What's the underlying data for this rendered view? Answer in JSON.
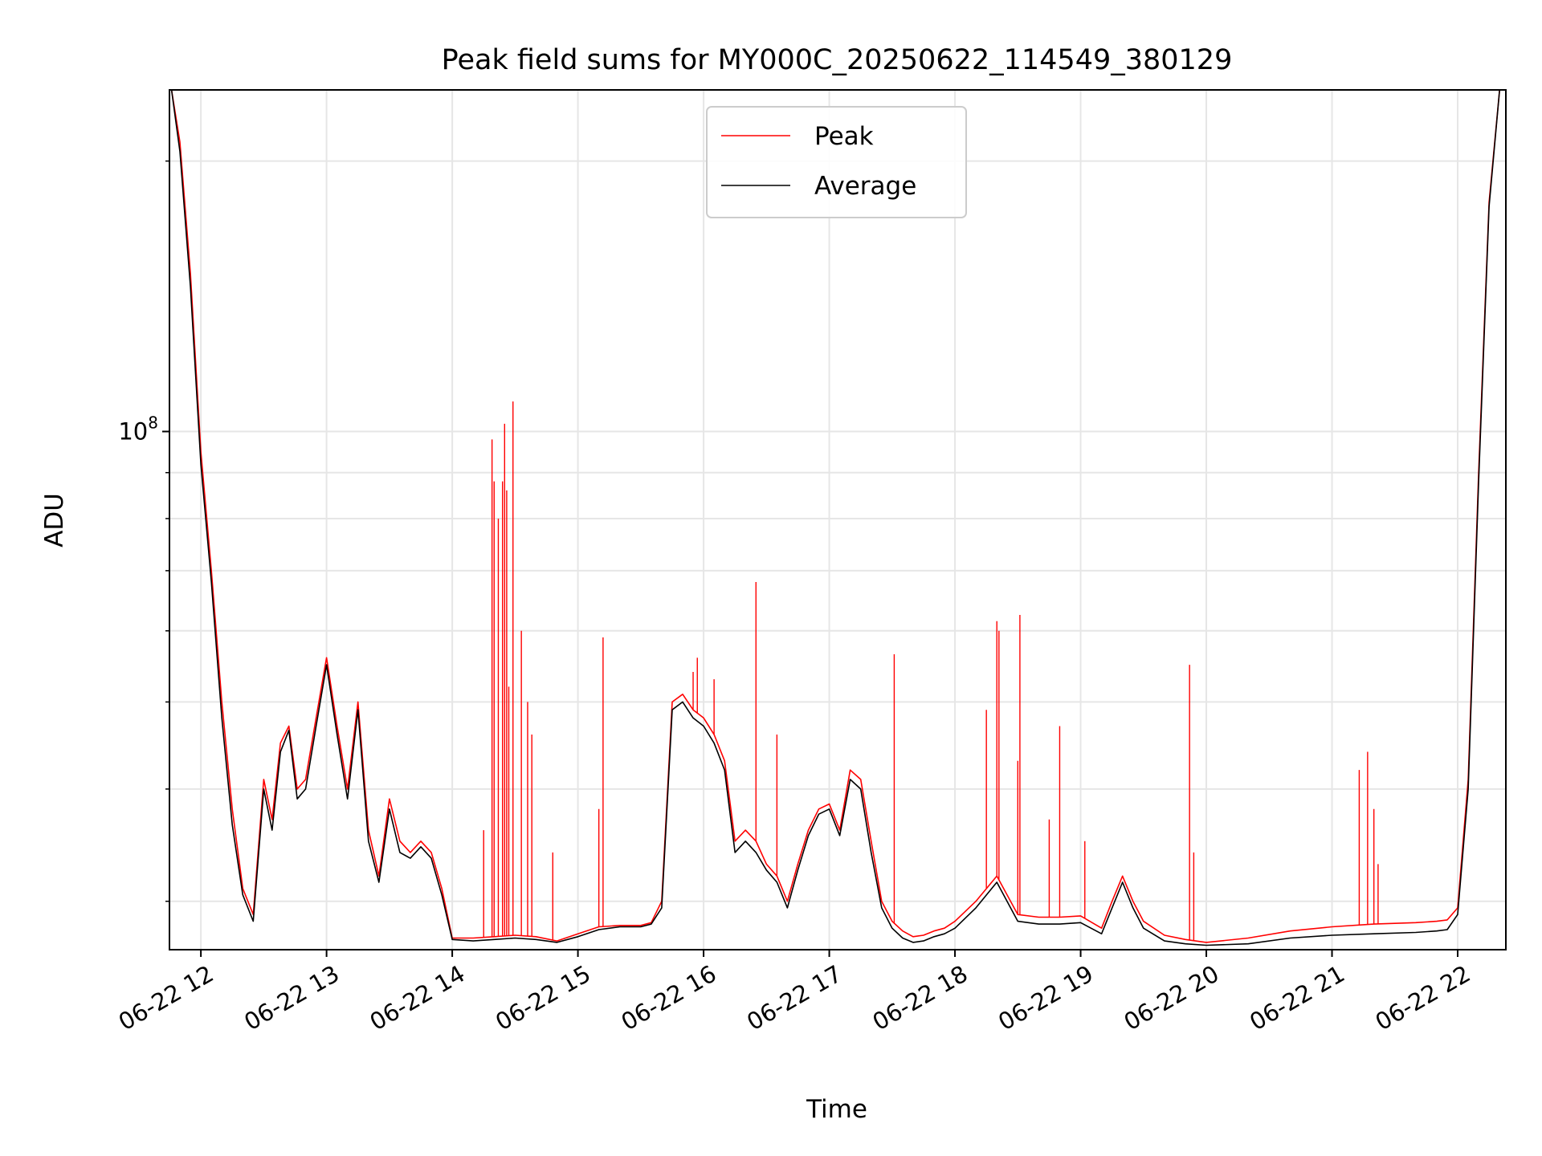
{
  "chart_data": {
    "type": "line",
    "title": "Peak field sums for MY000C_20250622_114549_380129",
    "xlabel": "Time",
    "ylabel": "ADU",
    "yscale": "log",
    "grid": true,
    "legend_position": "top-center",
    "xlim": [
      "2025-06-22 11:45",
      "2025-06-22 22:23"
    ],
    "ylim": [
      26500000,
      240000000
    ],
    "x_ticks": [
      "06-22 12",
      "06-22 13",
      "06-22 14",
      "06-22 15",
      "06-22 16",
      "06-22 17",
      "06-22 18",
      "06-22 19",
      "06-22 20",
      "06-22 21",
      "06-22 22"
    ],
    "y_ticks": [
      {
        "value": 100000000,
        "base": "10",
        "exp": "8"
      }
    ],
    "series": [
      {
        "name": "Peak",
        "color": "#ff0000",
        "x": [
          "2025-06-22 11:46",
          "2025-06-22 11:50",
          "2025-06-22 11:55",
          "2025-06-22 12:00",
          "2025-06-22 12:05",
          "2025-06-22 12:10",
          "2025-06-22 12:15",
          "2025-06-22 12:20",
          "2025-06-22 12:25",
          "2025-06-22 12:30",
          "2025-06-22 12:34",
          "2025-06-22 12:38",
          "2025-06-22 12:42",
          "2025-06-22 12:46",
          "2025-06-22 12:50",
          "2025-06-22 12:55",
          "2025-06-22 13:00",
          "2025-06-22 13:05",
          "2025-06-22 13:10",
          "2025-06-22 13:15",
          "2025-06-22 13:20",
          "2025-06-22 13:25",
          "2025-06-22 13:30",
          "2025-06-22 13:35",
          "2025-06-22 13:40",
          "2025-06-22 13:45",
          "2025-06-22 13:50",
          "2025-06-22 13:55",
          "2025-06-22 14:00",
          "2025-06-22 14:10",
          "2025-06-22 14:20",
          "2025-06-22 14:30",
          "2025-06-22 14:40",
          "2025-06-22 14:50",
          "2025-06-22 15:00",
          "2025-06-22 15:10",
          "2025-06-22 15:20",
          "2025-06-22 15:30",
          "2025-06-22 15:35",
          "2025-06-22 15:40",
          "2025-06-22 15:45",
          "2025-06-22 15:50",
          "2025-06-22 15:55",
          "2025-06-22 16:00",
          "2025-06-22 16:05",
          "2025-06-22 16:10",
          "2025-06-22 16:15",
          "2025-06-22 16:20",
          "2025-06-22 16:25",
          "2025-06-22 16:30",
          "2025-06-22 16:35",
          "2025-06-22 16:40",
          "2025-06-22 16:45",
          "2025-06-22 16:50",
          "2025-06-22 16:55",
          "2025-06-22 17:00",
          "2025-06-22 17:05",
          "2025-06-22 17:10",
          "2025-06-22 17:15",
          "2025-06-22 17:20",
          "2025-06-22 17:25",
          "2025-06-22 17:30",
          "2025-06-22 17:35",
          "2025-06-22 17:40",
          "2025-06-22 17:45",
          "2025-06-22 17:50",
          "2025-06-22 17:55",
          "2025-06-22 18:00",
          "2025-06-22 18:10",
          "2025-06-22 18:20",
          "2025-06-22 18:30",
          "2025-06-22 18:40",
          "2025-06-22 18:50",
          "2025-06-22 19:00",
          "2025-06-22 19:10",
          "2025-06-22 19:15",
          "2025-06-22 19:20",
          "2025-06-22 19:25",
          "2025-06-22 19:30",
          "2025-06-22 19:40",
          "2025-06-22 19:50",
          "2025-06-22 20:00",
          "2025-06-22 20:20",
          "2025-06-22 20:40",
          "2025-06-22 21:00",
          "2025-06-22 21:20",
          "2025-06-22 21:40",
          "2025-06-22 21:50",
          "2025-06-22 21:55",
          "2025-06-22 22:00",
          "2025-06-22 22:05",
          "2025-06-22 22:10",
          "2025-06-22 22:15",
          "2025-06-22 22:20"
        ],
        "y": [
          240000000,
          210000000,
          150000000,
          95000000,
          70000000,
          50000000,
          38000000,
          31000000,
          29000000,
          41000000,
          37000000,
          45000000,
          47000000,
          40000000,
          41000000,
          48000000,
          56000000,
          47000000,
          40000000,
          50000000,
          36000000,
          32000000,
          39000000,
          35000000,
          34000000,
          35000000,
          34000000,
          31000000,
          27300000,
          27300000,
          27400000,
          27500000,
          27400000,
          27100000,
          27600000,
          28100000,
          28200000,
          28200000,
          28400000,
          30000000,
          50000000,
          51000000,
          49000000,
          48000000,
          46000000,
          43000000,
          35000000,
          36000000,
          35000000,
          33000000,
          32000000,
          30000000,
          33000000,
          36000000,
          38000000,
          38500000,
          36000000,
          42000000,
          41000000,
          35000000,
          30000000,
          28500000,
          27800000,
          27400000,
          27500000,
          27800000,
          28000000,
          28500000,
          30000000,
          32000000,
          29000000,
          28800000,
          28800000,
          28900000,
          28000000,
          30000000,
          32000000,
          30000000,
          28500000,
          27500000,
          27200000,
          27000000,
          27300000,
          27800000,
          28100000,
          28300000,
          28400000,
          28500000,
          28600000,
          29500000,
          41000000,
          90000000,
          180000000,
          240000000
        ],
        "spikes": [
          {
            "x": "2025-06-22 14:15",
            "y": 36000000
          },
          {
            "x": "2025-06-22 14:19",
            "y": 98000000
          },
          {
            "x": "2025-06-22 14:20",
            "y": 88000000
          },
          {
            "x": "2025-06-22 14:22",
            "y": 80000000
          },
          {
            "x": "2025-06-22 14:24",
            "y": 88000000
          },
          {
            "x": "2025-06-22 14:25",
            "y": 102000000
          },
          {
            "x": "2025-06-22 14:26",
            "y": 86000000
          },
          {
            "x": "2025-06-22 14:27",
            "y": 52000000
          },
          {
            "x": "2025-06-22 14:29",
            "y": 108000000
          },
          {
            "x": "2025-06-22 14:33",
            "y": 60000000
          },
          {
            "x": "2025-06-22 14:36",
            "y": 50000000
          },
          {
            "x": "2025-06-22 14:38",
            "y": 46000000
          },
          {
            "x": "2025-06-22 14:48",
            "y": 34000000
          },
          {
            "x": "2025-06-22 15:10",
            "y": 38000000
          },
          {
            "x": "2025-06-22 15:12",
            "y": 59000000
          },
          {
            "x": "2025-06-22 15:55",
            "y": 54000000
          },
          {
            "x": "2025-06-22 15:57",
            "y": 56000000
          },
          {
            "x": "2025-06-22 16:05",
            "y": 53000000
          },
          {
            "x": "2025-06-22 16:25",
            "y": 68000000
          },
          {
            "x": "2025-06-22 16:35",
            "y": 46000000
          },
          {
            "x": "2025-06-22 17:31",
            "y": 56500000
          },
          {
            "x": "2025-06-22 18:15",
            "y": 49000000
          },
          {
            "x": "2025-06-22 18:20",
            "y": 61500000
          },
          {
            "x": "2025-06-22 18:21",
            "y": 60000000
          },
          {
            "x": "2025-06-22 18:30",
            "y": 43000000
          },
          {
            "x": "2025-06-22 18:31",
            "y": 62500000
          },
          {
            "x": "2025-06-22 18:45",
            "y": 37000000
          },
          {
            "x": "2025-06-22 18:50",
            "y": 47000000
          },
          {
            "x": "2025-06-22 19:02",
            "y": 35000000
          },
          {
            "x": "2025-06-22 19:52",
            "y": 55000000
          },
          {
            "x": "2025-06-22 19:54",
            "y": 34000000
          },
          {
            "x": "2025-06-22 21:13",
            "y": 42000000
          },
          {
            "x": "2025-06-22 21:17",
            "y": 44000000
          },
          {
            "x": "2025-06-22 21:20",
            "y": 38000000
          },
          {
            "x": "2025-06-22 21:22",
            "y": 33000000
          }
        ]
      },
      {
        "name": "Average",
        "color": "#000000",
        "x": [
          "2025-06-22 11:46",
          "2025-06-22 11:50",
          "2025-06-22 11:55",
          "2025-06-22 12:00",
          "2025-06-22 12:05",
          "2025-06-22 12:10",
          "2025-06-22 12:15",
          "2025-06-22 12:20",
          "2025-06-22 12:25",
          "2025-06-22 12:30",
          "2025-06-22 12:34",
          "2025-06-22 12:38",
          "2025-06-22 12:42",
          "2025-06-22 12:46",
          "2025-06-22 12:50",
          "2025-06-22 12:55",
          "2025-06-22 13:00",
          "2025-06-22 13:05",
          "2025-06-22 13:10",
          "2025-06-22 13:15",
          "2025-06-22 13:20",
          "2025-06-22 13:25",
          "2025-06-22 13:30",
          "2025-06-22 13:35",
          "2025-06-22 13:40",
          "2025-06-22 13:45",
          "2025-06-22 13:50",
          "2025-06-22 13:55",
          "2025-06-22 14:00",
          "2025-06-22 14:10",
          "2025-06-22 14:20",
          "2025-06-22 14:30",
          "2025-06-22 14:40",
          "2025-06-22 14:50",
          "2025-06-22 15:00",
          "2025-06-22 15:10",
          "2025-06-22 15:20",
          "2025-06-22 15:30",
          "2025-06-22 15:35",
          "2025-06-22 15:40",
          "2025-06-22 15:45",
          "2025-06-22 15:50",
          "2025-06-22 15:55",
          "2025-06-22 16:00",
          "2025-06-22 16:05",
          "2025-06-22 16:10",
          "2025-06-22 16:15",
          "2025-06-22 16:20",
          "2025-06-22 16:25",
          "2025-06-22 16:30",
          "2025-06-22 16:35",
          "2025-06-22 16:40",
          "2025-06-22 16:45",
          "2025-06-22 16:50",
          "2025-06-22 16:55",
          "2025-06-22 17:00",
          "2025-06-22 17:05",
          "2025-06-22 17:10",
          "2025-06-22 17:15",
          "2025-06-22 17:20",
          "2025-06-22 17:25",
          "2025-06-22 17:30",
          "2025-06-22 17:35",
          "2025-06-22 17:40",
          "2025-06-22 17:45",
          "2025-06-22 17:50",
          "2025-06-22 17:55",
          "2025-06-22 18:00",
          "2025-06-22 18:10",
          "2025-06-22 18:20",
          "2025-06-22 18:30",
          "2025-06-22 18:40",
          "2025-06-22 18:50",
          "2025-06-22 19:00",
          "2025-06-22 19:10",
          "2025-06-22 19:15",
          "2025-06-22 19:20",
          "2025-06-22 19:25",
          "2025-06-22 19:30",
          "2025-06-22 19:40",
          "2025-06-22 19:50",
          "2025-06-22 20:00",
          "2025-06-22 20:20",
          "2025-06-22 20:40",
          "2025-06-22 21:00",
          "2025-06-22 21:20",
          "2025-06-22 21:40",
          "2025-06-22 21:50",
          "2025-06-22 21:55",
          "2025-06-22 22:00",
          "2025-06-22 22:05",
          "2025-06-22 22:10",
          "2025-06-22 22:15",
          "2025-06-22 22:20"
        ],
        "y": [
          240000000,
          205000000,
          145000000,
          92000000,
          68000000,
          48000000,
          36500000,
          30500000,
          28500000,
          40000000,
          36000000,
          44000000,
          46500000,
          39000000,
          40000000,
          47000000,
          55000000,
          46000000,
          39000000,
          49000000,
          35000000,
          31500000,
          38000000,
          34000000,
          33500000,
          34500000,
          33500000,
          30500000,
          27200000,
          27100000,
          27200000,
          27300000,
          27200000,
          27000000,
          27400000,
          27900000,
          28100000,
          28100000,
          28300000,
          29500000,
          49000000,
          50000000,
          48000000,
          47000000,
          45000000,
          42000000,
          34000000,
          35000000,
          34000000,
          32500000,
          31500000,
          29500000,
          32500000,
          35500000,
          37500000,
          38000000,
          35500000,
          41000000,
          40000000,
          34000000,
          29500000,
          28000000,
          27300000,
          27000000,
          27100000,
          27400000,
          27600000,
          28000000,
          29500000,
          31500000,
          28500000,
          28300000,
          28300000,
          28400000,
          27600000,
          29500000,
          31500000,
          29500000,
          28000000,
          27100000,
          26900000,
          26800000,
          26900000,
          27300000,
          27500000,
          27600000,
          27700000,
          27800000,
          27900000,
          29000000,
          40000000,
          88000000,
          178000000,
          240000000
        ]
      }
    ]
  }
}
